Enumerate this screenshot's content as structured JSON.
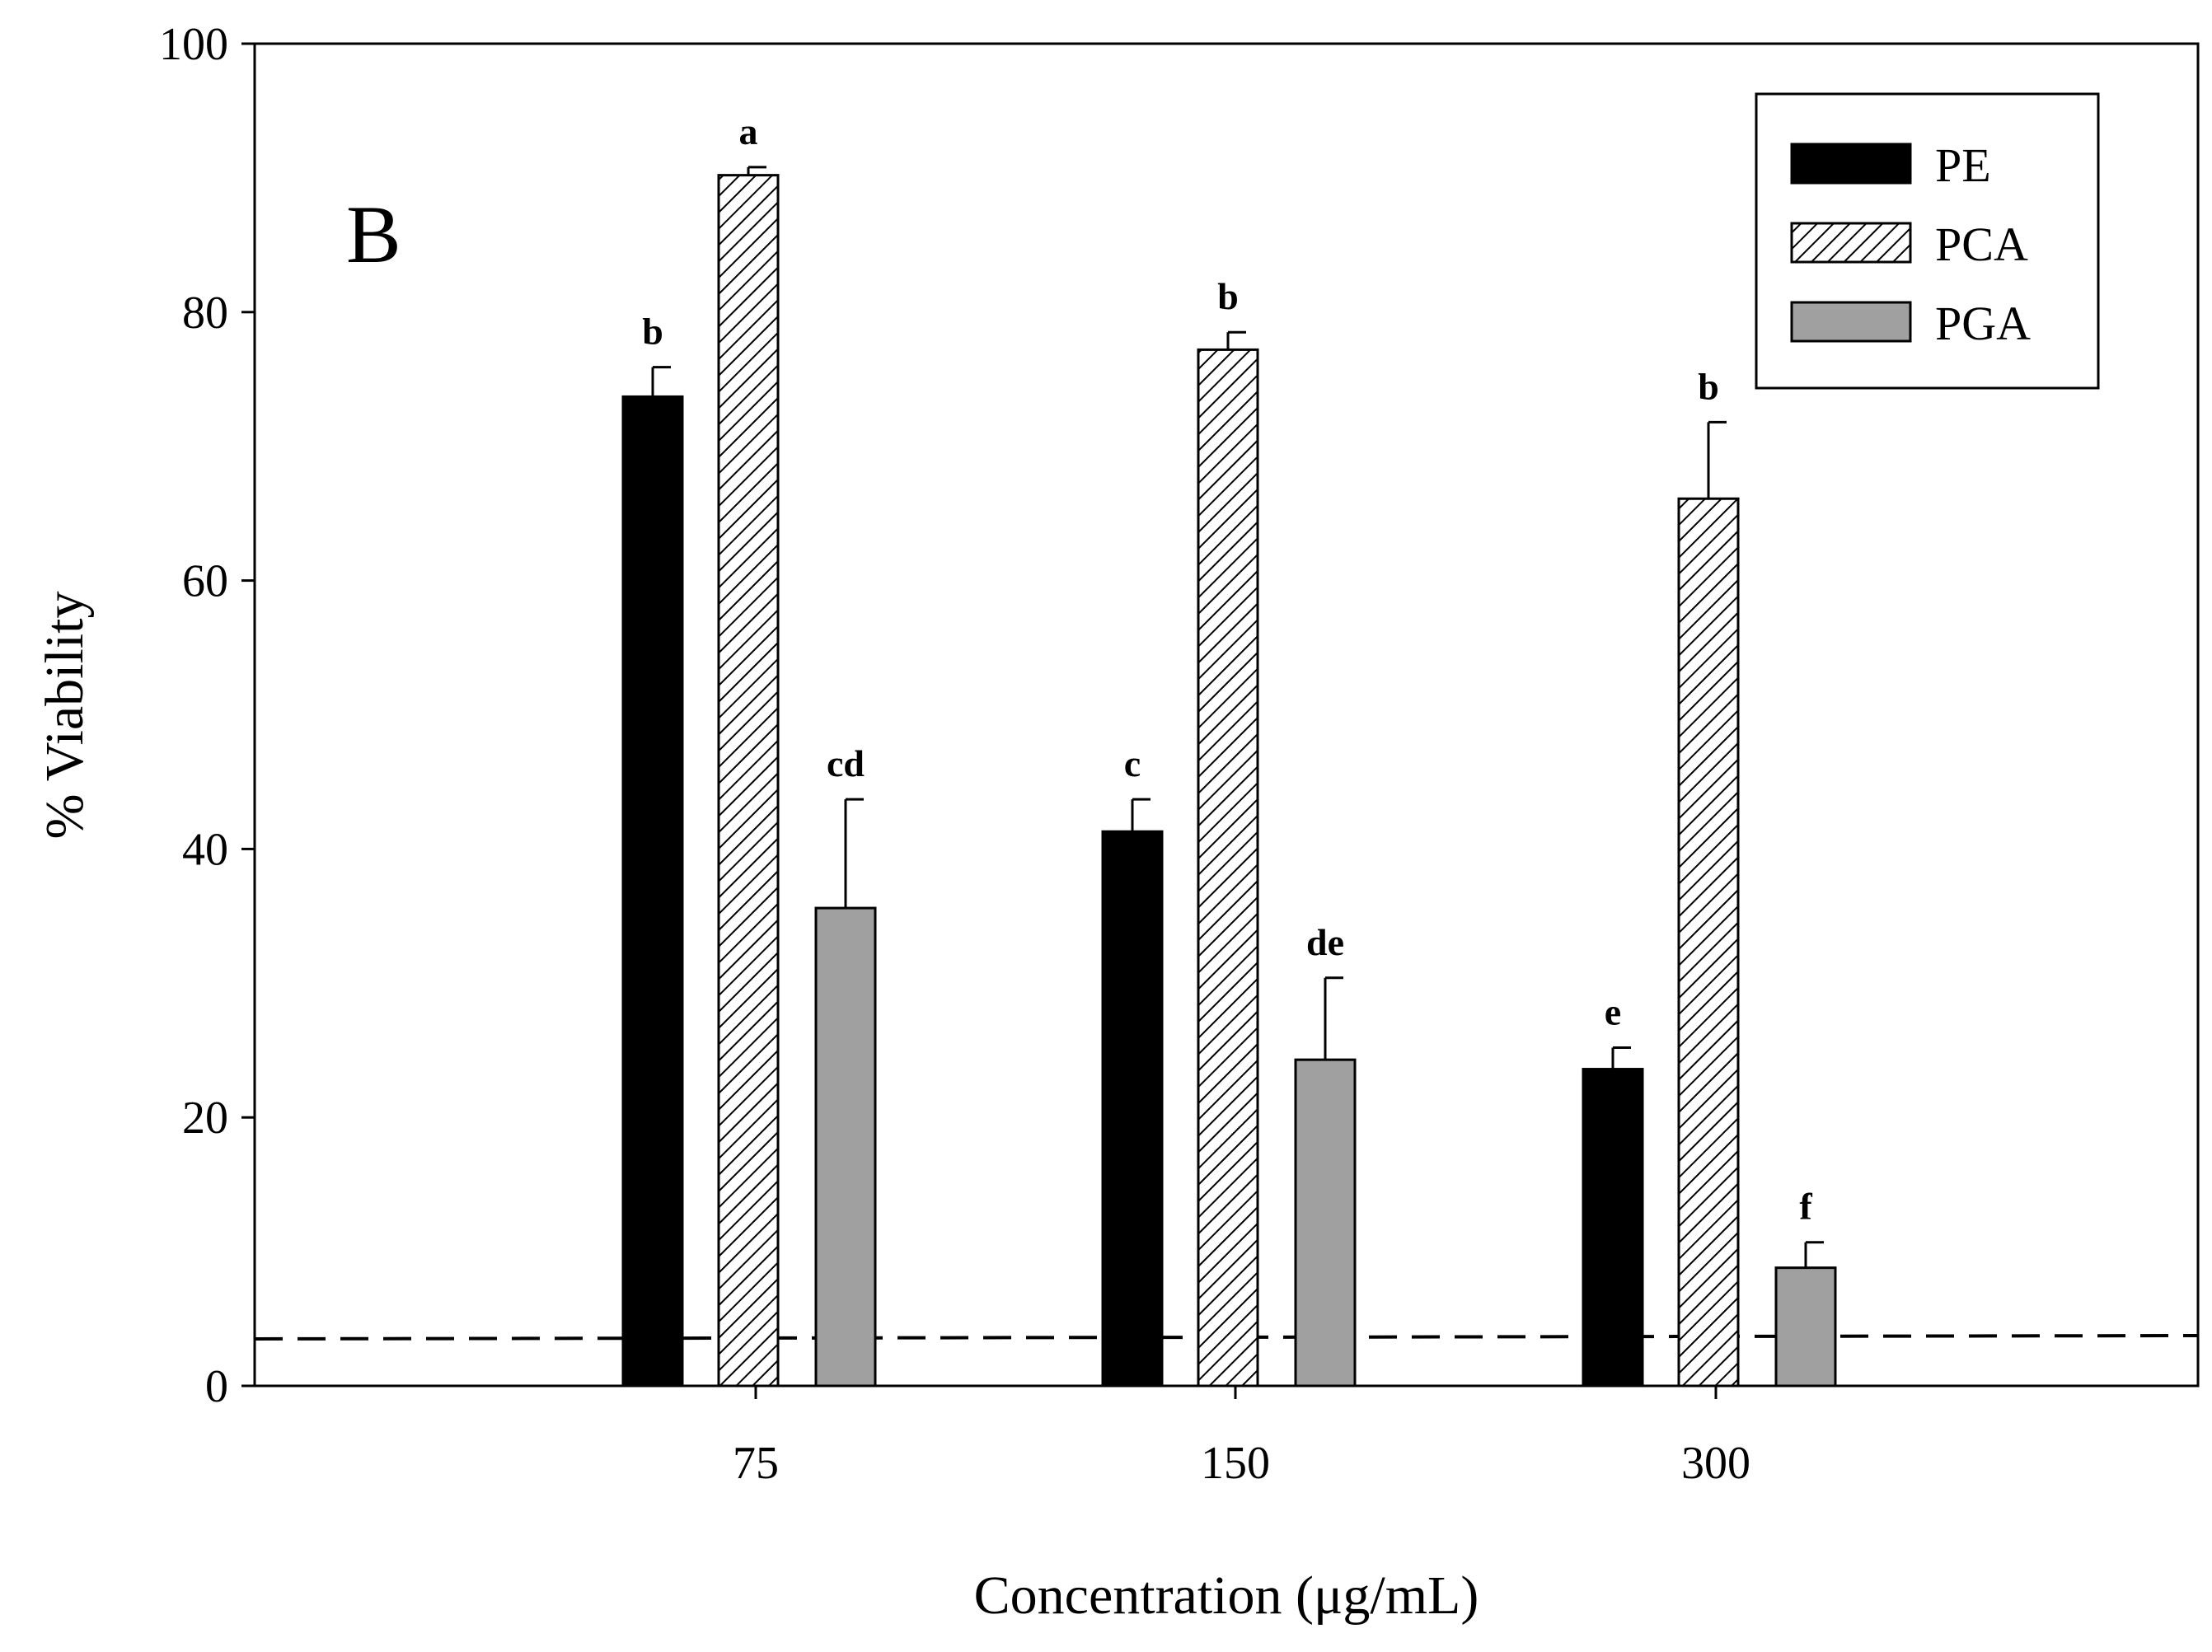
{
  "chart_data": {
    "type": "bar",
    "panel_label": "B",
    "xlabel": "Concentration (μg/mL)",
    "ylabel": "% Viability",
    "ylim": [
      0,
      100
    ],
    "yticks": [
      0,
      20,
      40,
      60,
      80,
      100
    ],
    "categories": [
      "75",
      "150",
      "300"
    ],
    "legend_position": "top-right",
    "reference_line": 3.5,
    "series": [
      {
        "name": "PE",
        "pattern": "solid",
        "color": "#000000",
        "values": [
          73.7,
          41.3,
          23.6
        ],
        "errors": [
          2.2,
          2.4,
          1.6
        ],
        "letters": [
          "b",
          "c",
          "e"
        ]
      },
      {
        "name": "PCA",
        "pattern": "hatch",
        "color": "#000000",
        "values": [
          90.2,
          77.2,
          66.1
        ],
        "errors": [
          0.6,
          1.3,
          5.7
        ],
        "letters": [
          "a",
          "b",
          "b"
        ]
      },
      {
        "name": "PGA",
        "pattern": "solid",
        "color": "#a0a0a0",
        "values": [
          35.6,
          24.3,
          8.8
        ],
        "errors": [
          8.1,
          6.1,
          1.9
        ],
        "letters": [
          "cd",
          "de",
          "f"
        ]
      }
    ]
  }
}
